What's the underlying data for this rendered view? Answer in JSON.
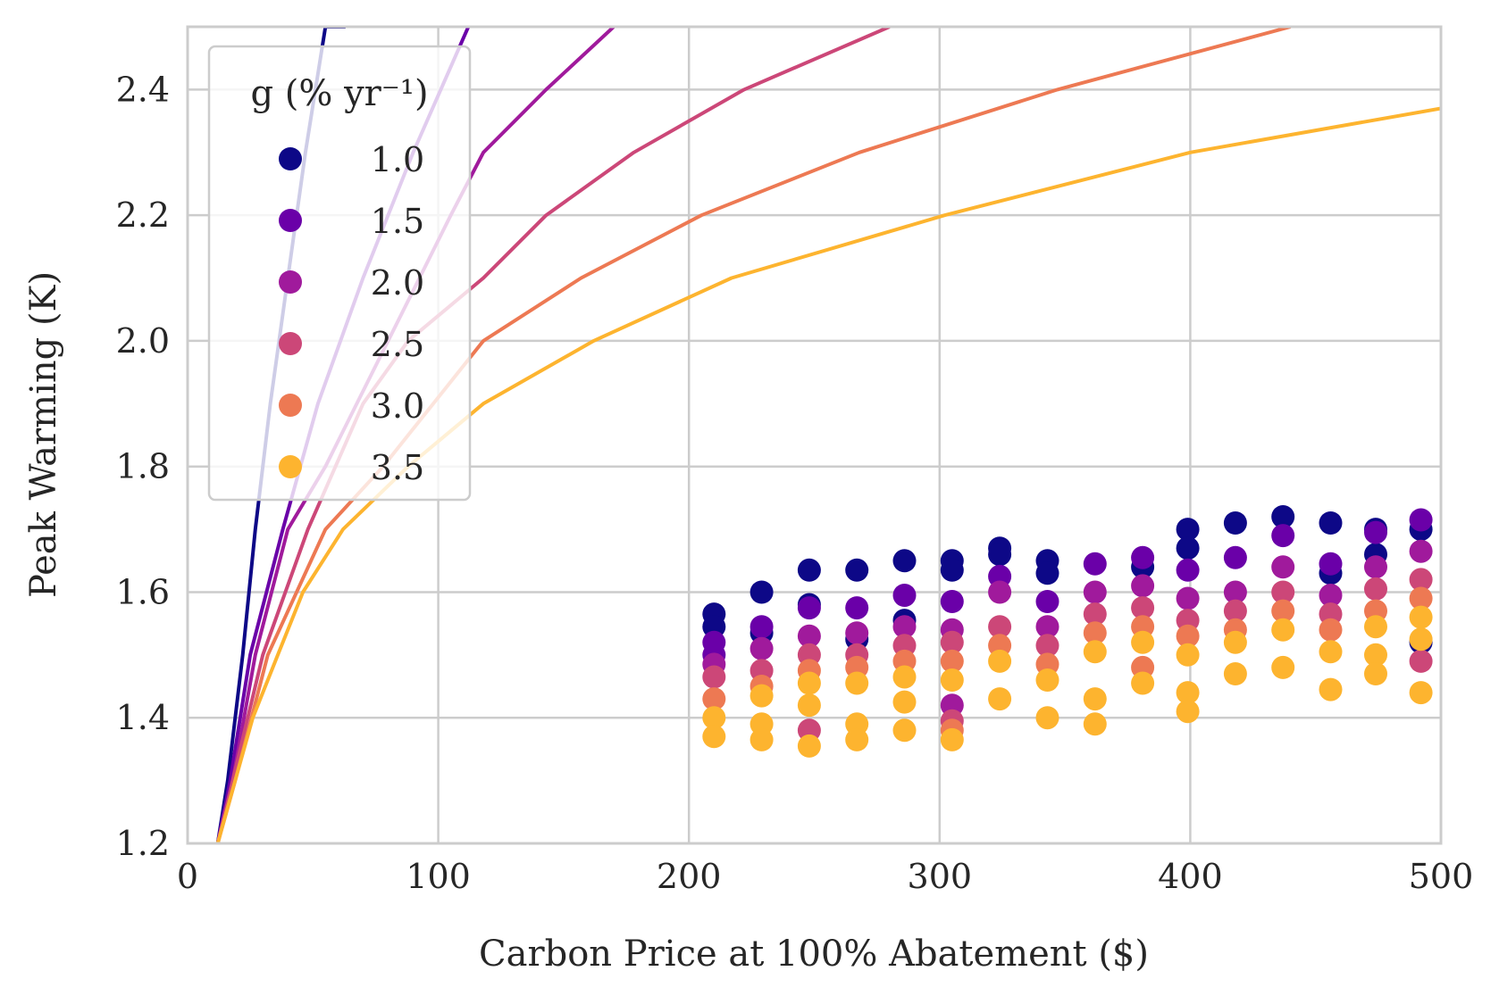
{
  "chart_data": {
    "type": "scatter",
    "title": "",
    "xlabel": "Carbon Price at 100% Abatement ($)",
    "ylabel": "Peak Warming (K)",
    "xlim": [
      0,
      500
    ],
    "ylim": [
      1.2,
      2.5
    ],
    "x_ticks": [
      "0",
      "100",
      "200",
      "300",
      "400",
      "500"
    ],
    "y_ticks": [
      "1.2",
      "1.4",
      "1.6",
      "1.8",
      "2.0",
      "2.2",
      "2.4"
    ],
    "grid": true,
    "legend": {
      "title": "g (% yr⁻¹)",
      "placement": "top-left",
      "entries": [
        "1.0",
        "1.5",
        "2.0",
        "2.5",
        "3.0",
        "3.5"
      ]
    },
    "colors": [
      "#0d0887",
      "#6a00a8",
      "#a01a9c",
      "#cc4778",
      "#ed7953",
      "#fdb42f"
    ],
    "series": [
      {
        "name": "1.0",
        "curve": [
          [
            12,
            1.2
          ],
          [
            16,
            1.3
          ],
          [
            22,
            1.5
          ],
          [
            27,
            1.7
          ],
          [
            33,
            1.9
          ],
          [
            40,
            2.1
          ],
          [
            47,
            2.3
          ],
          [
            55,
            2.5
          ],
          [
            63,
            2.5
          ]
        ],
        "points": [
          [
            210,
            1.565
          ],
          [
            210,
            1.545
          ],
          [
            229,
            1.6
          ],
          [
            229,
            1.535
          ],
          [
            248,
            1.635
          ],
          [
            248,
            1.58
          ],
          [
            267,
            1.635
          ],
          [
            267,
            1.525
          ],
          [
            286,
            1.65
          ],
          [
            286,
            1.555
          ],
          [
            305,
            1.65
          ],
          [
            305,
            1.635
          ],
          [
            324,
            1.67
          ],
          [
            324,
            1.66
          ],
          [
            343,
            1.65
          ],
          [
            343,
            1.63
          ],
          [
            381,
            1.64
          ],
          [
            399,
            1.7
          ],
          [
            399,
            1.67
          ],
          [
            418,
            1.71
          ],
          [
            437,
            1.72
          ],
          [
            456,
            1.71
          ],
          [
            456,
            1.63
          ],
          [
            474,
            1.7
          ],
          [
            474,
            1.66
          ],
          [
            492,
            1.7
          ],
          [
            492,
            1.52
          ]
        ]
      },
      {
        "name": "1.5",
        "curve": [
          [
            12,
            1.2
          ],
          [
            17,
            1.3
          ],
          [
            25,
            1.5
          ],
          [
            38,
            1.7
          ],
          [
            52,
            1.9
          ],
          [
            70,
            2.1
          ],
          [
            90,
            2.3
          ],
          [
            112,
            2.5
          ]
        ],
        "points": [
          [
            210,
            1.52
          ],
          [
            210,
            1.5
          ],
          [
            229,
            1.545
          ],
          [
            248,
            1.575
          ],
          [
            267,
            1.575
          ],
          [
            286,
            1.595
          ],
          [
            305,
            1.585
          ],
          [
            324,
            1.625
          ],
          [
            343,
            1.585
          ],
          [
            362,
            1.645
          ],
          [
            381,
            1.655
          ],
          [
            399,
            1.635
          ],
          [
            418,
            1.655
          ],
          [
            437,
            1.69
          ],
          [
            456,
            1.645
          ],
          [
            474,
            1.695
          ],
          [
            492,
            1.715
          ]
        ]
      },
      {
        "name": "2.0",
        "curve": [
          [
            12,
            1.2
          ],
          [
            18,
            1.3
          ],
          [
            27,
            1.5
          ],
          [
            40,
            1.7
          ],
          [
            55,
            1.8
          ],
          [
            80,
            2.0
          ],
          [
            105,
            2.2
          ],
          [
            118,
            2.3
          ],
          [
            143,
            2.4
          ],
          [
            170,
            2.5
          ]
        ],
        "points": [
          [
            210,
            1.485
          ],
          [
            229,
            1.51
          ],
          [
            248,
            1.53
          ],
          [
            267,
            1.535
          ],
          [
            286,
            1.545
          ],
          [
            305,
            1.54
          ],
          [
            305,
            1.42
          ],
          [
            324,
            1.6
          ],
          [
            343,
            1.545
          ],
          [
            362,
            1.6
          ],
          [
            381,
            1.61
          ],
          [
            399,
            1.59
          ],
          [
            418,
            1.6
          ],
          [
            437,
            1.64
          ],
          [
            456,
            1.595
          ],
          [
            474,
            1.64
          ],
          [
            492,
            1.665
          ]
        ]
      },
      {
        "name": "2.5",
        "curve": [
          [
            12,
            1.2
          ],
          [
            18,
            1.3
          ],
          [
            30,
            1.5
          ],
          [
            48,
            1.7
          ],
          [
            70,
            1.9
          ],
          [
            88,
            2.0
          ],
          [
            118,
            2.1
          ],
          [
            143,
            2.2
          ],
          [
            178,
            2.3
          ],
          [
            222,
            2.4
          ],
          [
            280,
            2.5
          ]
        ],
        "points": [
          [
            210,
            1.465
          ],
          [
            229,
            1.475
          ],
          [
            248,
            1.5
          ],
          [
            248,
            1.38
          ],
          [
            267,
            1.5
          ],
          [
            286,
            1.515
          ],
          [
            305,
            1.52
          ],
          [
            305,
            1.395
          ],
          [
            324,
            1.545
          ],
          [
            343,
            1.515
          ],
          [
            362,
            1.565
          ],
          [
            381,
            1.575
          ],
          [
            399,
            1.555
          ],
          [
            418,
            1.57
          ],
          [
            437,
            1.6
          ],
          [
            456,
            1.565
          ],
          [
            474,
            1.605
          ],
          [
            492,
            1.62
          ],
          [
            492,
            1.49
          ]
        ]
      },
      {
        "name": "3.0",
        "curve": [
          [
            12,
            1.2
          ],
          [
            19,
            1.3
          ],
          [
            32,
            1.5
          ],
          [
            55,
            1.7
          ],
          [
            78,
            1.8
          ],
          [
            118,
            2.0
          ],
          [
            157,
            2.1
          ],
          [
            205,
            2.2
          ],
          [
            268,
            2.3
          ],
          [
            347,
            2.4
          ],
          [
            440,
            2.5
          ]
        ],
        "points": [
          [
            210,
            1.43
          ],
          [
            229,
            1.45
          ],
          [
            248,
            1.475
          ],
          [
            267,
            1.48
          ],
          [
            286,
            1.49
          ],
          [
            305,
            1.49
          ],
          [
            305,
            1.38
          ],
          [
            324,
            1.515
          ],
          [
            343,
            1.485
          ],
          [
            362,
            1.535
          ],
          [
            381,
            1.545
          ],
          [
            381,
            1.48
          ],
          [
            399,
            1.53
          ],
          [
            418,
            1.54
          ],
          [
            437,
            1.57
          ],
          [
            456,
            1.54
          ],
          [
            474,
            1.57
          ],
          [
            492,
            1.59
          ]
        ]
      },
      {
        "name": "3.5",
        "curve": [
          [
            12,
            1.2
          ],
          [
            19,
            1.3
          ],
          [
            26,
            1.4
          ],
          [
            36,
            1.5
          ],
          [
            46,
            1.6
          ],
          [
            62,
            1.7
          ],
          [
            88,
            1.8
          ],
          [
            118,
            1.9
          ],
          [
            162,
            2.0
          ],
          [
            217,
            2.1
          ],
          [
            302,
            2.2
          ],
          [
            400,
            2.3
          ],
          [
            500,
            2.37
          ]
        ],
        "points": [
          [
            210,
            1.4
          ],
          [
            210,
            1.37
          ],
          [
            229,
            1.435
          ],
          [
            229,
            1.39
          ],
          [
            229,
            1.365
          ],
          [
            248,
            1.455
          ],
          [
            248,
            1.42
          ],
          [
            248,
            1.355
          ],
          [
            267,
            1.455
          ],
          [
            267,
            1.39
          ],
          [
            267,
            1.365
          ],
          [
            286,
            1.465
          ],
          [
            286,
            1.425
          ],
          [
            286,
            1.38
          ],
          [
            305,
            1.46
          ],
          [
            305,
            1.365
          ],
          [
            324,
            1.49
          ],
          [
            324,
            1.43
          ],
          [
            343,
            1.46
          ],
          [
            343,
            1.4
          ],
          [
            362,
            1.505
          ],
          [
            362,
            1.43
          ],
          [
            362,
            1.39
          ],
          [
            381,
            1.52
          ],
          [
            381,
            1.455
          ],
          [
            399,
            1.5
          ],
          [
            399,
            1.44
          ],
          [
            399,
            1.41
          ],
          [
            418,
            1.52
          ],
          [
            418,
            1.47
          ],
          [
            437,
            1.54
          ],
          [
            437,
            1.48
          ],
          [
            456,
            1.505
          ],
          [
            456,
            1.445
          ],
          [
            474,
            1.545
          ],
          [
            474,
            1.5
          ],
          [
            474,
            1.47
          ],
          [
            492,
            1.56
          ],
          [
            492,
            1.525
          ],
          [
            492,
            1.44
          ]
        ]
      }
    ]
  }
}
